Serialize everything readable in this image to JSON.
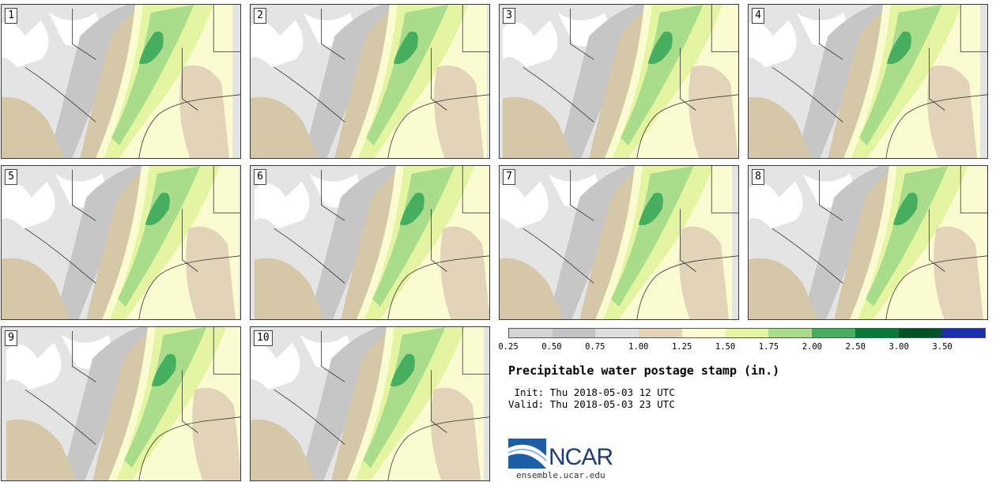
{
  "panels": [
    {
      "label": "1"
    },
    {
      "label": "2"
    },
    {
      "label": "3"
    },
    {
      "label": "4"
    },
    {
      "label": "5"
    },
    {
      "label": "6"
    },
    {
      "label": "7"
    },
    {
      "label": "8"
    },
    {
      "label": "9"
    },
    {
      "label": "10"
    }
  ],
  "colorbar": {
    "colors": [
      "#d4d4d4",
      "#c4c4c4",
      "#dedede",
      "#e2d4b8",
      "#fbfbd2",
      "#e4f5a2",
      "#a9dd8c",
      "#45ae5f",
      "#087a37",
      "#035127",
      "#1b30a8"
    ],
    "ticks": [
      "0.25",
      "0.50",
      "0.75",
      "1.00",
      "1.25",
      "1.50",
      "1.75",
      "2.00",
      "2.50",
      "3.00",
      "3.50"
    ]
  },
  "title": "Precipitable water postage stamp (in.)",
  "init": " Init: Thu 2018-05-03 12 UTC",
  "valid": "Valid: Thu 2018-05-03 23 UTC",
  "logo": {
    "text": "NCAR",
    "website": "ensemble.ucar.edu"
  }
}
